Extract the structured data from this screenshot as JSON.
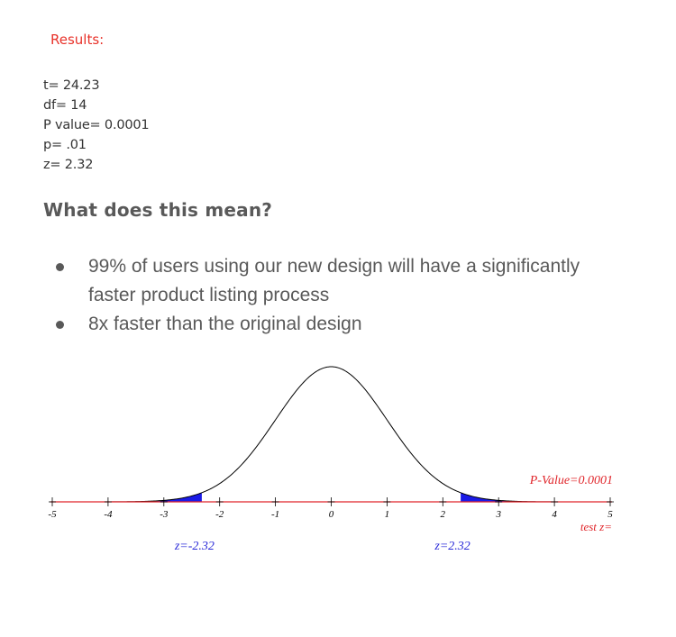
{
  "results": {
    "title": "Results:",
    "lines": [
      "t= 24.23",
      "df= 14",
      "P value= 0.0001",
      "p= .01",
      "z= 2.32"
    ]
  },
  "question": "What does this mean?",
  "bullets": [
    "99% of users using our new design will have a significantly faster product listing process",
    "8x faster than the original design"
  ],
  "colors": {
    "accent_red": "#e8322a",
    "axis_red": "#e0252a",
    "tail_blue": "#1a1ae6",
    "z_label_blue": "#2a2ad8"
  },
  "chart_data": {
    "type": "area",
    "distribution": "standard normal",
    "xlim": [
      -5,
      5
    ],
    "x_ticks": [
      -5,
      -4,
      -3,
      -2,
      -1,
      0,
      1,
      2,
      3,
      4,
      5
    ],
    "tick_labels": [
      "-5",
      "-4",
      "-3",
      "-2",
      "-1",
      "0",
      "1",
      "2",
      "3",
      "4",
      "5"
    ],
    "critical_values": [
      -2.32,
      2.32
    ],
    "critical_labels": [
      "z=-2.32",
      "z=2.32"
    ],
    "shaded_tails": [
      {
        "from": -5,
        "to": -2.32
      },
      {
        "from": 2.32,
        "to": 5
      }
    ],
    "p_value_label": "P-Value=0.0001",
    "xlabel": "test z=",
    "grid": false
  }
}
